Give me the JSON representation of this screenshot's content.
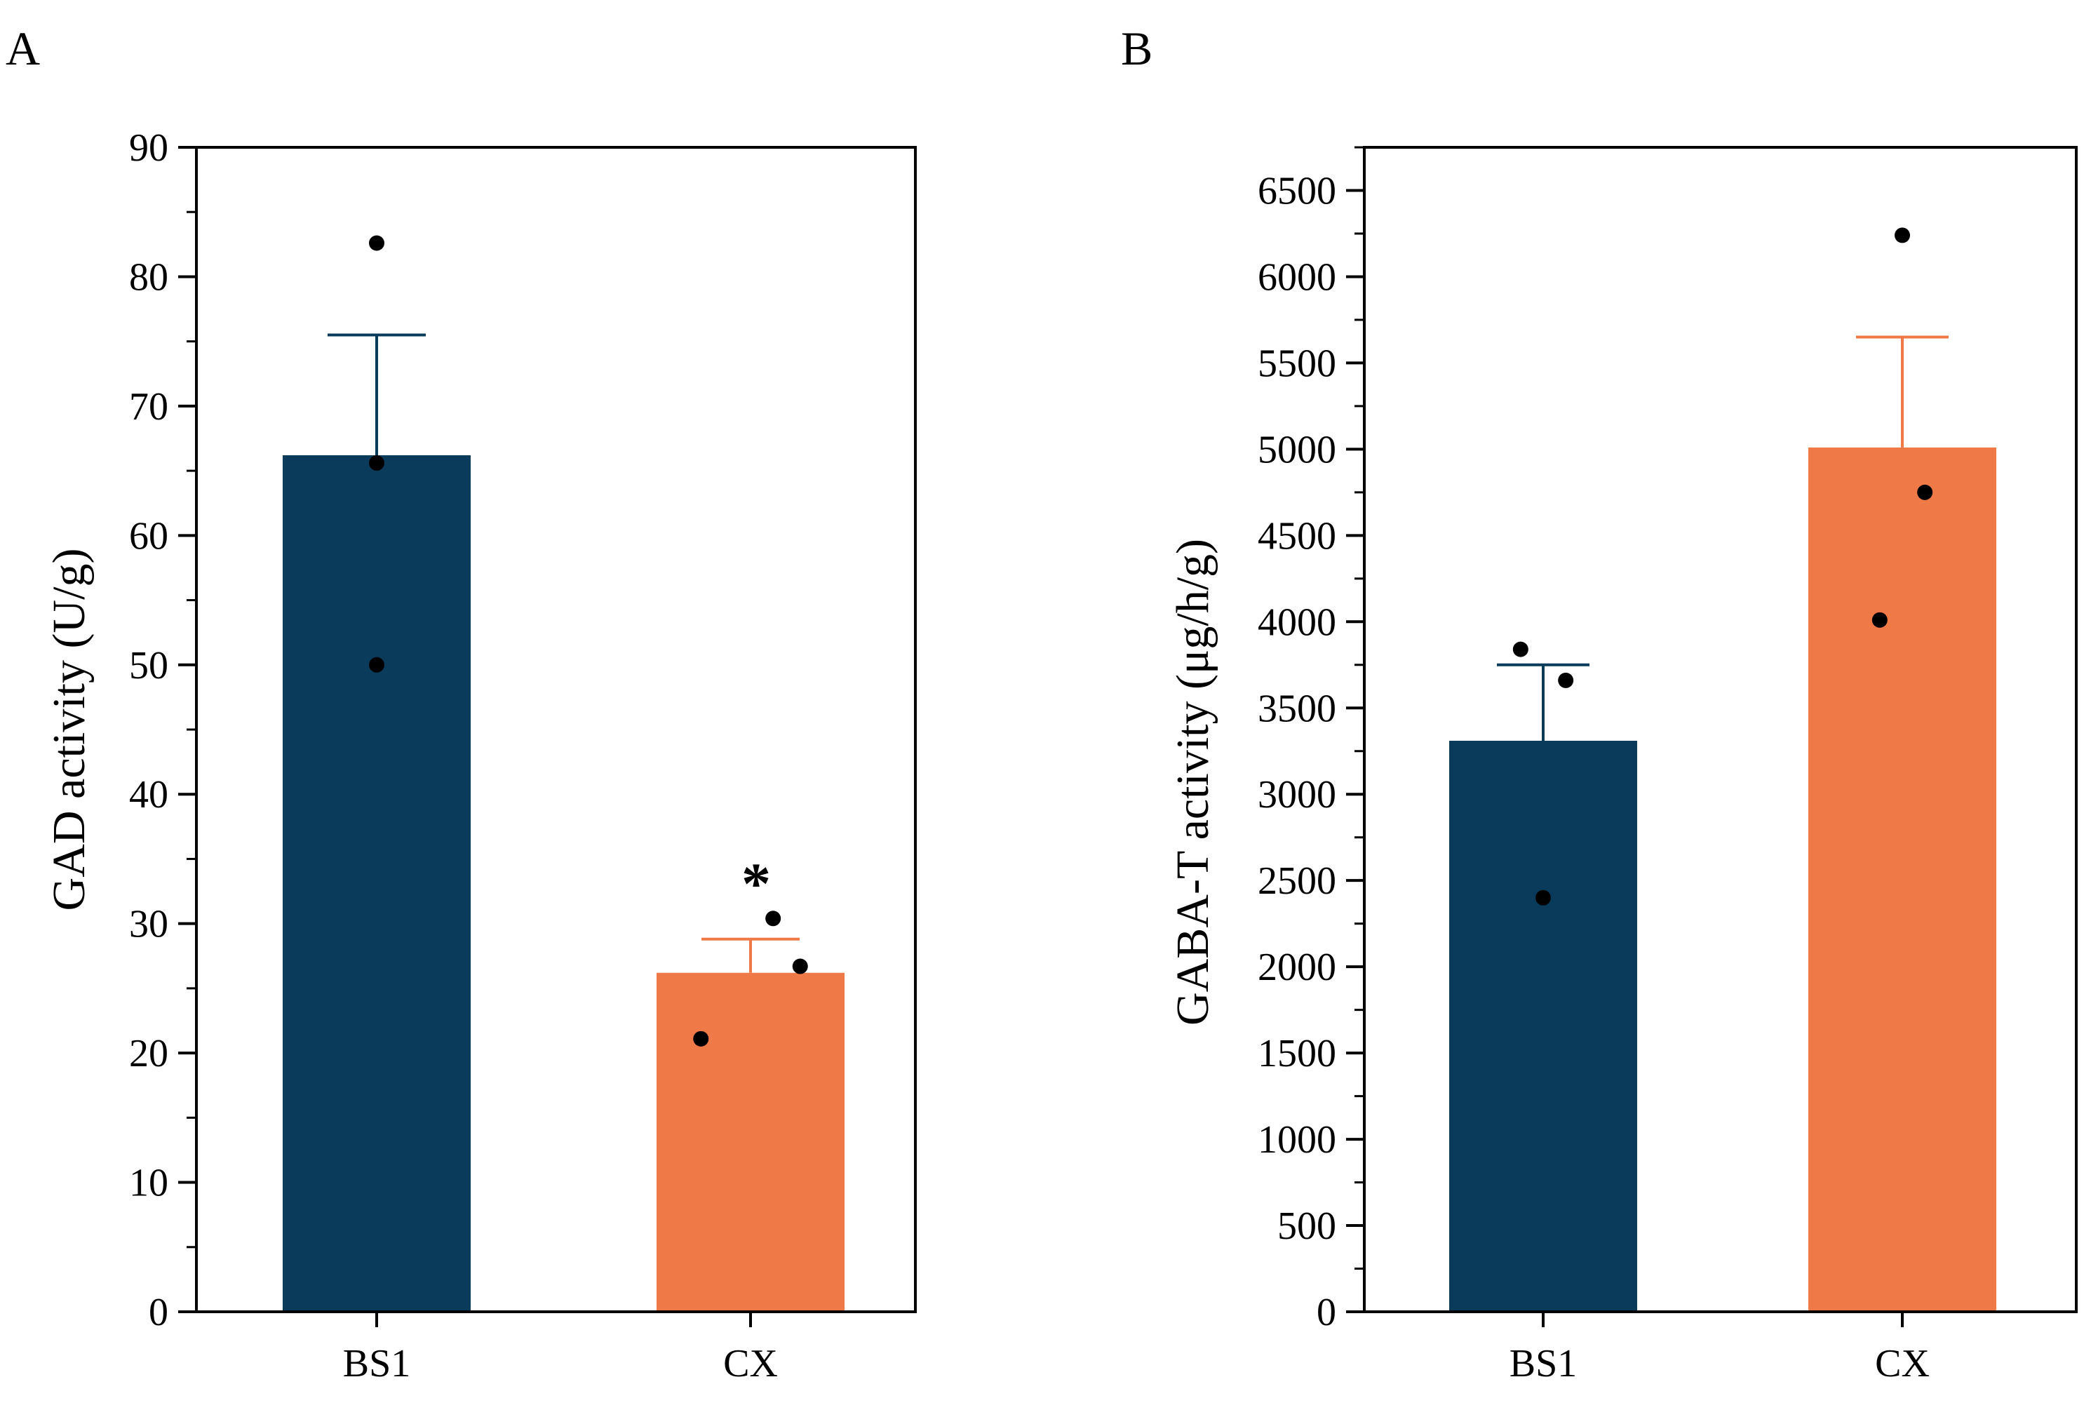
{
  "chart_data": [
    {
      "type": "bar",
      "panel_label": "A",
      "categories": [
        "BS1",
        "CX"
      ],
      "values": [
        66.2,
        26.2
      ],
      "errors": [
        9.3,
        2.6
      ],
      "points": [
        [
          82.6,
          65.6,
          50.0
        ],
        [
          30.4,
          26.7,
          21.1
        ]
      ],
      "point_offsets": [
        [
          0,
          0,
          0
        ],
        [
          0.2,
          0.44,
          -0.44
        ]
      ],
      "colors": [
        "#0b3b5a",
        "#ef7947"
      ],
      "annotations": [
        {
          "category": "CX",
          "text": "*"
        }
      ],
      "ylabel": "GAD activity (U/g)",
      "xlabel": "",
      "ylim": [
        0,
        90
      ],
      "yticks": [
        0,
        10,
        20,
        30,
        40,
        50,
        60,
        70,
        80,
        90
      ],
      "minor_step": 5
    },
    {
      "type": "bar",
      "panel_label": "B",
      "categories": [
        "BS1",
        "CX"
      ],
      "values": [
        3310,
        5010
      ],
      "errors": [
        440,
        640
      ],
      "points": [
        [
          3840,
          3660,
          2400
        ],
        [
          6240,
          4750,
          4010
        ]
      ],
      "point_offsets": [
        [
          -0.2,
          0.2,
          0
        ],
        [
          0,
          0.2,
          -0.2
        ]
      ],
      "colors": [
        "#0b3b5a",
        "#ef7947"
      ],
      "annotations": [],
      "ylabel": "GABA-T activity (μg/h/g)",
      "xlabel": "",
      "ylim": [
        0,
        6750
      ],
      "yticks": [
        0,
        500,
        1000,
        1500,
        2000,
        2500,
        3000,
        3500,
        4000,
        4500,
        5000,
        5500,
        6000,
        6500
      ],
      "minor_step": 250
    }
  ]
}
